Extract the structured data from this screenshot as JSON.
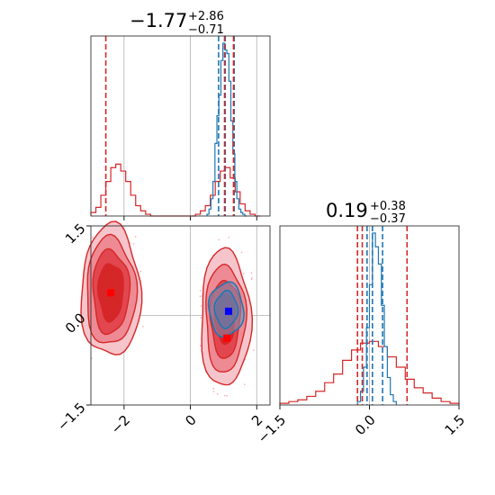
{
  "chart_data": {
    "type": "corner",
    "colors": {
      "series_a": "#1f77b4",
      "series_b": "#d62728",
      "marker_a": "#0000ff",
      "marker_b": "#ff0000",
      "grid": "#b0b0b0"
    },
    "parameters": [
      {
        "title": {
          "median": "−1.77",
          "upper": "+2.86",
          "lower": "−0.71"
        },
        "range": [
          -3.0,
          2.4
        ],
        "ticks": [
          {
            "value": -2,
            "label": "−2"
          },
          {
            "value": 0,
            "label": "0"
          },
          {
            "value": 2,
            "label": "2"
          }
        ]
      },
      {
        "title": {
          "median": "0.19",
          "upper": "+0.38",
          "lower": "−0.37"
        },
        "range": [
          -1.5,
          1.5
        ],
        "ticks": [
          {
            "value": -1.5,
            "label": "−1.5"
          },
          {
            "value": 0.0,
            "label": "0.0"
          },
          {
            "value": 1.5,
            "label": "1.5"
          }
        ]
      }
    ],
    "grid": true,
    "hist1d_p1": {
      "blue": {
        "bins": [
          0.5,
          0.56,
          0.62,
          0.68,
          0.74,
          0.8,
          0.86,
          0.92,
          0.98,
          1.04,
          1.1,
          1.16,
          1.22,
          1.28,
          1.34,
          1.4,
          1.46,
          1.52,
          1.58,
          1.64,
          1.7
        ],
        "counts": [
          0.01,
          0.04,
          0.1,
          0.2,
          0.42,
          0.58,
          0.7,
          0.9,
          1.0,
          0.96,
          0.94,
          0.78,
          0.55,
          0.36,
          0.2,
          0.1,
          0.04,
          0.02,
          0.01,
          0.0
        ]
      },
      "red": {
        "bins": [
          -3.0,
          -2.85,
          -2.7,
          -2.55,
          -2.4,
          -2.25,
          -2.1,
          -1.95,
          -1.8,
          -1.65,
          -1.5,
          -1.35,
          -1.2,
          0.0,
          0.15,
          0.3,
          0.45,
          0.6,
          0.75,
          0.9,
          1.05,
          1.2,
          1.35,
          1.5,
          1.65,
          1.8,
          1.95,
          2.1
        ],
        "counts": [
          0.02,
          0.05,
          0.12,
          0.2,
          0.28,
          0.3,
          0.26,
          0.2,
          0.12,
          0.06,
          0.03,
          0.01,
          0.0,
          0.0,
          0.01,
          0.03,
          0.06,
          0.12,
          0.2,
          0.26,
          0.28,
          0.22,
          0.14,
          0.07,
          0.03,
          0.01,
          0.0
        ]
      },
      "quantiles_blue": [
        0.85,
        1.05,
        1.32
      ],
      "quantiles_red": [
        -2.55,
        1.03,
        1.3
      ]
    },
    "hist1d_p2": {
      "blue": {
        "bins": [
          -0.2,
          -0.15,
          -0.1,
          -0.05,
          0.0,
          0.05,
          0.1,
          0.15,
          0.2,
          0.25,
          0.3,
          0.35,
          0.4,
          0.45
        ],
        "counts": [
          0.02,
          0.08,
          0.22,
          0.45,
          0.7,
          1.0,
          0.92,
          0.82,
          0.58,
          0.34,
          0.16,
          0.06,
          0.02
        ]
      },
      "red": {
        "bins": [
          -1.5,
          -1.35,
          -1.2,
          -1.05,
          -0.9,
          -0.75,
          -0.6,
          -0.45,
          -0.3,
          -0.15,
          0.0,
          0.15,
          0.3,
          0.45,
          0.6,
          0.75,
          0.9,
          1.05,
          1.2,
          1.35,
          1.5
        ],
        "counts": [
          0.01,
          0.02,
          0.03,
          0.05,
          0.08,
          0.13,
          0.18,
          0.26,
          0.32,
          0.36,
          0.37,
          0.34,
          0.28,
          0.22,
          0.15,
          0.1,
          0.07,
          0.04,
          0.02,
          0.01
        ]
      },
      "quantiles_blue": [
        -0.04,
        0.05,
        0.22
      ],
      "quantiles_red": [
        -0.2,
        -0.12,
        0.63
      ]
    },
    "hist2d": {
      "red_clusters": [
        {
          "cx": -2.4,
          "cy": 0.4,
          "rx": [
            0.9,
            0.75,
            0.55,
            0.38
          ],
          "ry": [
            1.1,
            0.9,
            0.7,
            0.48
          ]
        },
        {
          "cx": 1.05,
          "cy": -0.05,
          "rx": [
            0.75,
            0.6,
            0.45,
            0.3
          ],
          "ry": [
            1.15,
            0.9,
            0.65,
            0.42
          ]
        }
      ],
      "blue_cluster": {
        "cx": 1.08,
        "cy": 0.1,
        "rx": [
          0.52,
          0.34
        ],
        "ry": [
          0.45,
          0.3
        ]
      },
      "markers_red": [
        {
          "x": -2.4,
          "y": 0.38
        },
        {
          "x": 1.1,
          "y": -0.38
        }
      ],
      "marker_blue": {
        "x": 1.15,
        "y": 0.07
      },
      "marker_red_main": {
        "x": 1.15,
        "y": 0.07
      }
    }
  }
}
